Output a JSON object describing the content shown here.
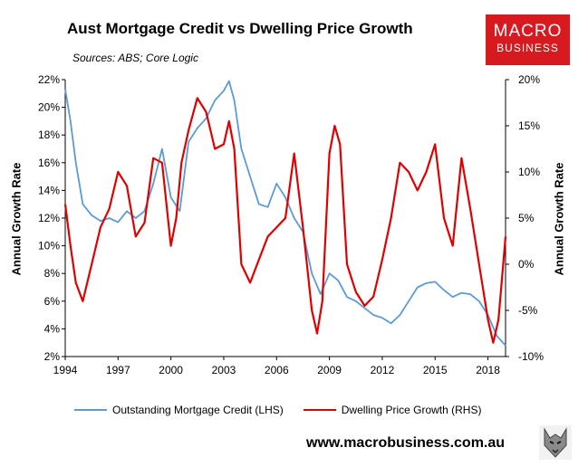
{
  "header": {
    "title": "Aust Mortgage Credit vs Dwelling Price Growth",
    "subtitle": "Sources: ABS; Core Logic"
  },
  "logo": {
    "line1": "MACRO",
    "line2": "BUSINESS",
    "color": "#d71920"
  },
  "footer": {
    "url": "www.macrobusiness.com.au",
    "wolf_icon": "wolf-head-icon"
  },
  "chart_data": {
    "type": "line",
    "ylabel": "Annual Growth Rate",
    "y2label": "Annual Growth Rate",
    "x_ticks": [
      "1994",
      "1997",
      "2000",
      "2003",
      "2006",
      "2009",
      "2012",
      "2015",
      "2018"
    ],
    "xlim": [
      1994,
      2019
    ],
    "ylim": [
      2,
      22
    ],
    "y2lim": [
      -10,
      20
    ],
    "y_ticks": [
      "2%",
      "4%",
      "6%",
      "8%",
      "10%",
      "12%",
      "14%",
      "16%",
      "18%",
      "20%",
      "22%"
    ],
    "y2_ticks": [
      "-10%",
      "-5%",
      "0%",
      "5%",
      "10%",
      "15%",
      "20%"
    ],
    "grid": false,
    "legend_position": "bottom",
    "series": [
      {
        "name": "Outstanding Mortgage Credit (LHS)",
        "axis": "left",
        "color": "#5b9bd5",
        "x": [
          1994.0,
          1994.3,
          1994.6,
          1995.0,
          1995.5,
          1996.0,
          1996.5,
          1997.0,
          1997.5,
          1998.0,
          1998.5,
          1999.0,
          1999.5,
          2000.0,
          2000.5,
          2001.0,
          2001.5,
          2002.0,
          2002.5,
          2003.0,
          2003.3,
          2003.6,
          2004.0,
          2004.5,
          2005.0,
          2005.5,
          2006.0,
          2006.5,
          2007.0,
          2007.5,
          2008.0,
          2008.5,
          2009.0,
          2009.5,
          2010.0,
          2010.5,
          2011.0,
          2011.5,
          2012.0,
          2012.5,
          2013.0,
          2013.5,
          2014.0,
          2014.5,
          2015.0,
          2015.5,
          2016.0,
          2016.5,
          2017.0,
          2017.5,
          2018.0,
          2018.5,
          2019.0
        ],
        "y": [
          21.3,
          19.0,
          16.0,
          13.0,
          12.2,
          11.8,
          12.0,
          11.7,
          12.5,
          12.0,
          12.5,
          14.5,
          17.0,
          13.5,
          12.5,
          17.5,
          18.5,
          19.2,
          20.5,
          21.2,
          21.9,
          20.5,
          17.0,
          15.0,
          13.0,
          12.8,
          14.5,
          13.5,
          12.0,
          11.0,
          8.0,
          6.5,
          8.0,
          7.5,
          6.3,
          6.0,
          5.5,
          5.0,
          4.8,
          4.4,
          5.0,
          6.0,
          7.0,
          7.3,
          7.4,
          6.8,
          6.3,
          6.6,
          6.5,
          6.0,
          5.0,
          3.5,
          2.8
        ]
      },
      {
        "name": "Dwelling Price Growth (RHS)",
        "axis": "right",
        "color": "#e00000",
        "x": [
          1994.0,
          1994.3,
          1994.6,
          1995.0,
          1995.5,
          1996.0,
          1996.5,
          1997.0,
          1997.5,
          1998.0,
          1998.5,
          1999.0,
          1999.5,
          2000.0,
          2000.3,
          2000.6,
          2001.0,
          2001.5,
          2002.0,
          2002.5,
          2003.0,
          2003.3,
          2003.6,
          2004.0,
          2004.5,
          2005.0,
          2005.5,
          2006.0,
          2006.5,
          2007.0,
          2007.5,
          2008.0,
          2008.3,
          2008.6,
          2009.0,
          2009.3,
          2009.6,
          2010.0,
          2010.5,
          2011.0,
          2011.5,
          2012.0,
          2012.5,
          2013.0,
          2013.5,
          2014.0,
          2014.5,
          2015.0,
          2015.5,
          2016.0,
          2016.5,
          2017.0,
          2017.5,
          2018.0,
          2018.3,
          2018.6,
          2019.0
        ],
        "y": [
          6.5,
          2.0,
          -2.0,
          -4.0,
          0.0,
          4.0,
          6.0,
          10.0,
          8.5,
          3.0,
          4.5,
          11.5,
          11.0,
          2.0,
          5.0,
          11.0,
          14.5,
          18.0,
          16.5,
          12.5,
          13.0,
          15.5,
          12.5,
          0.0,
          -2.0,
          0.5,
          3.0,
          4.0,
          5.0,
          12.0,
          4.0,
          -5.0,
          -7.5,
          -4.0,
          12.0,
          15.0,
          13.0,
          0.0,
          -3.0,
          -4.5,
          -3.5,
          0.5,
          5.0,
          11.0,
          10.0,
          8.0,
          10.0,
          13.0,
          5.0,
          2.0,
          11.5,
          6.0,
          0.0,
          -6.0,
          -8.5,
          -6.0,
          3.0
        ]
      }
    ]
  }
}
